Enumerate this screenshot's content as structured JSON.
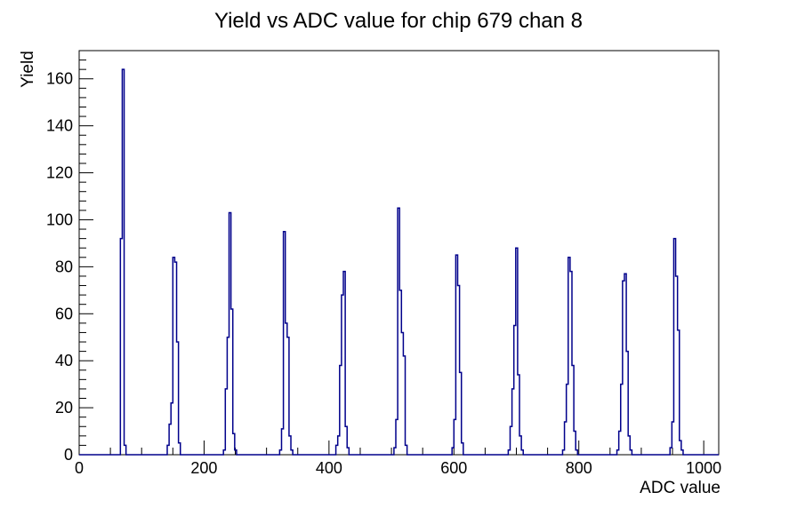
{
  "page": {
    "background": "#ffffff"
  },
  "chart_data": {
    "type": "bar",
    "style": "root-histogram-step-outline",
    "title": "Yield vs ADC value for chip 679 chan 8",
    "xlabel": "ADC value",
    "ylabel": "Yield",
    "xlim": [
      0,
      1024
    ],
    "ylim": [
      0,
      172
    ],
    "x_major_ticks": [
      0,
      200,
      400,
      600,
      800,
      1000
    ],
    "x_minor_step": 50,
    "x_major_every": 200,
    "y_major_ticks": [
      0,
      20,
      40,
      60,
      80,
      100,
      120,
      140,
      160
    ],
    "y_minor_step": 4,
    "y_major_every": 20,
    "grid": false,
    "legend": false,
    "line_color": "#00008B",
    "axis_color": "#000000",
    "bin_width": 3,
    "clusters": [
      [
        [
          66,
          92
        ],
        [
          69,
          164
        ],
        [
          72,
          4
        ]
      ],
      [
        [
          141,
          4
        ],
        [
          144,
          13
        ],
        [
          147,
          22
        ],
        [
          150,
          84
        ],
        [
          153,
          82
        ],
        [
          156,
          48
        ],
        [
          159,
          5
        ]
      ],
      [
        [
          231,
          2
        ],
        [
          234,
          28
        ],
        [
          237,
          50
        ],
        [
          240,
          103
        ],
        [
          243,
          62
        ],
        [
          246,
          9
        ],
        [
          249,
          2
        ]
      ],
      [
        [
          321,
          2
        ],
        [
          324,
          11
        ],
        [
          327,
          95
        ],
        [
          330,
          56
        ],
        [
          333,
          50
        ],
        [
          336,
          8
        ],
        [
          339,
          2
        ]
      ],
      [
        [
          411,
          4
        ],
        [
          414,
          8
        ],
        [
          417,
          38
        ],
        [
          420,
          68
        ],
        [
          423,
          78
        ],
        [
          426,
          12
        ],
        [
          429,
          3
        ]
      ],
      [
        [
          504,
          3
        ],
        [
          507,
          15
        ],
        [
          510,
          105
        ],
        [
          513,
          70
        ],
        [
          516,
          52
        ],
        [
          519,
          42
        ],
        [
          522,
          4
        ]
      ],
      [
        [
          597,
          3
        ],
        [
          600,
          15
        ],
        [
          603,
          85
        ],
        [
          606,
          72
        ],
        [
          609,
          35
        ],
        [
          612,
          5
        ]
      ],
      [
        [
          687,
          2
        ],
        [
          690,
          12
        ],
        [
          693,
          28
        ],
        [
          696,
          55
        ],
        [
          699,
          88
        ],
        [
          702,
          34
        ],
        [
          705,
          8
        ],
        [
          708,
          2
        ]
      ],
      [
        [
          774,
          2
        ],
        [
          777,
          14
        ],
        [
          780,
          30
        ],
        [
          783,
          84
        ],
        [
          786,
          78
        ],
        [
          789,
          38
        ],
        [
          792,
          10
        ],
        [
          795,
          2
        ]
      ],
      [
        [
          861,
          2
        ],
        [
          864,
          10
        ],
        [
          867,
          30
        ],
        [
          870,
          74
        ],
        [
          873,
          77
        ],
        [
          876,
          44
        ],
        [
          879,
          8
        ],
        [
          882,
          2
        ]
      ],
      [
        [
          946,
          3
        ],
        [
          949,
          14
        ],
        [
          952,
          92
        ],
        [
          955,
          76
        ],
        [
          958,
          53
        ],
        [
          961,
          6
        ],
        [
          964,
          2
        ]
      ]
    ],
    "peak_heights": [
      164,
      84,
      103,
      95,
      78,
      105,
      85,
      88,
      84,
      77,
      92
    ]
  }
}
